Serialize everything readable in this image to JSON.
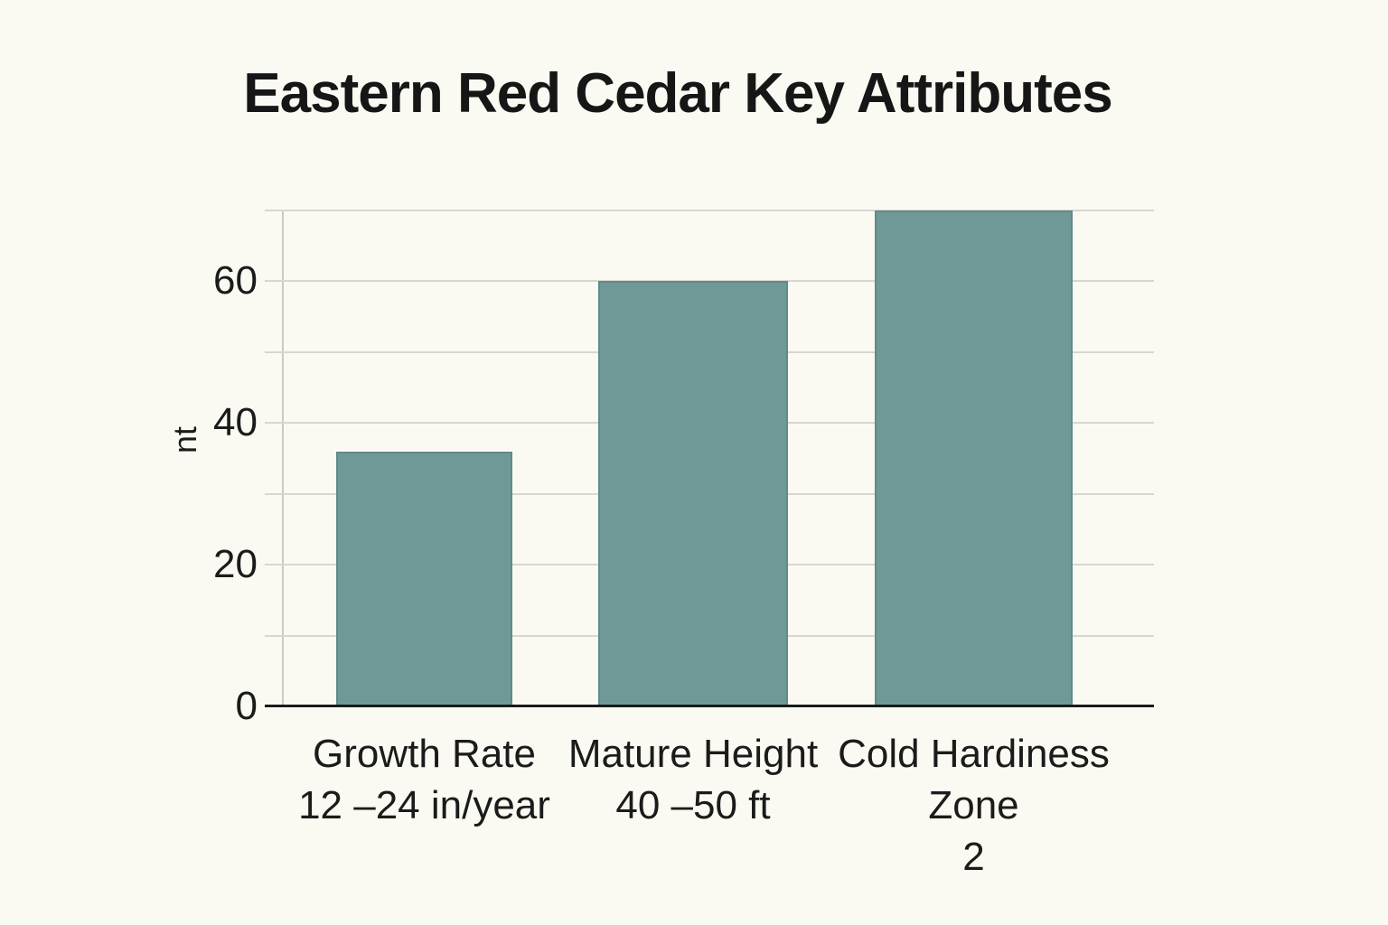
{
  "page": {
    "background_color": "#fbfaf2"
  },
  "chart_data": {
    "type": "bar",
    "title": "Eastern Red Cedar Key Attributes",
    "ylabel_visible": "nt",
    "xlabel": "",
    "categories": [
      "Growth Rate 12 –24 in/year",
      "Mature Height 40 –50 ft",
      "Cold Hardiness Zone 2"
    ],
    "category_lines": [
      [
        "Growth Rate",
        "12 –24 in/year"
      ],
      [
        "Mature Height",
        "40 –50 ft"
      ],
      [
        "Cold Hardiness",
        "Zone",
        "2"
      ]
    ],
    "values": [
      36,
      60,
      70
    ],
    "yticks": [
      0,
      20,
      40,
      60
    ],
    "grid_values": [
      10,
      20,
      30,
      40,
      50,
      60,
      70
    ],
    "ylim": [
      0,
      70
    ],
    "grid": "horizontal",
    "legend_position": "none",
    "bar_color": "#6e9997",
    "bar_border_color": "#5f8b89",
    "gridline_color": "#d8d6cf",
    "axis_color": "#1b1b1b",
    "text_color": "#1b1b1b"
  }
}
